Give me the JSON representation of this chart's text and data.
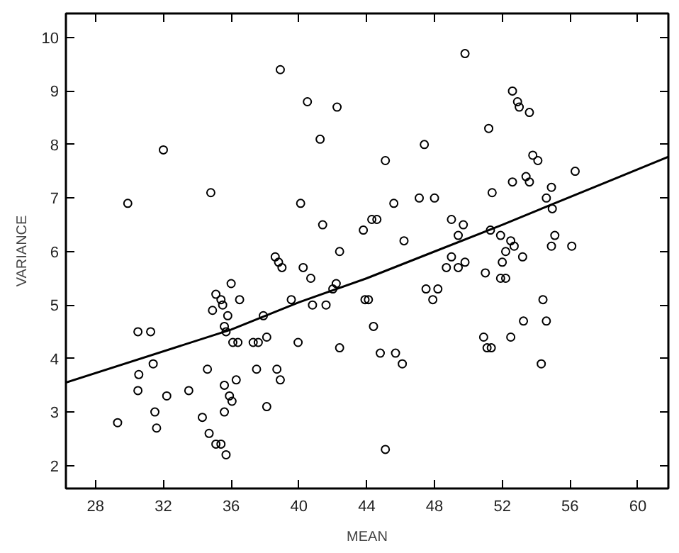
{
  "chart_data": {
    "type": "scatter",
    "xlabel": "MEAN",
    "ylabel": "VARIANCE",
    "xlim": [
      26.25,
      61.8
    ],
    "ylim": [
      1.57,
      10.45
    ],
    "xticks": [
      28,
      32,
      36,
      40,
      44,
      48,
      52,
      56,
      60
    ],
    "yticks": [
      2,
      3,
      4,
      5,
      6,
      7,
      8,
      9,
      10
    ],
    "grid": false,
    "series": [
      {
        "color": "#000000",
        "marker": "circle",
        "x": [
          29.9,
          32.0,
          34.8,
          38.9,
          40.5,
          42.25,
          41.25,
          40.1,
          41.4,
          42.4,
          38.6,
          38.8,
          39.0,
          40.25,
          40.7,
          30.5,
          31.25,
          30.55,
          30.5,
          31.4,
          31.5,
          31.6,
          29.3,
          32.2,
          33.5,
          34.6,
          34.3,
          34.7,
          35.1,
          35.4,
          35.7,
          35.6,
          35.6,
          35.9,
          36.05,
          36.3,
          34.9,
          35.1,
          35.4,
          35.5,
          35.8,
          35.6,
          35.7,
          36.0,
          36.5,
          36.1,
          36.4,
          37.3,
          37.6,
          37.5,
          37.9,
          38.1,
          38.1,
          38.7,
          38.9,
          39.55,
          39.95,
          40.8,
          41.6,
          42.0,
          42.2,
          42.4,
          49.8,
          52.6,
          52.9,
          53.0,
          53.6,
          51.2,
          47.4,
          45.1,
          53.8,
          54.1,
          56.3,
          52.6,
          53.4,
          53.6,
          54.9,
          54.6,
          54.95,
          51.4,
          45.6,
          47.1,
          48.0,
          44.3,
          44.6,
          43.8,
          46.2,
          49.0,
          49.7,
          49.4,
          51.3,
          51.9,
          52.5,
          52.7,
          55.1,
          54.9,
          56.1,
          52.2,
          53.2,
          49.0,
          48.7,
          49.4,
          49.8,
          52.0,
          51.0,
          51.9,
          52.2,
          47.5,
          48.2,
          47.9,
          43.9,
          44.1,
          54.4,
          44.4,
          44.8,
          45.7,
          46.1,
          53.25,
          54.6,
          50.9,
          51.1,
          51.35,
          52.5,
          54.3,
          45.1
        ],
        "values": [
          6.9,
          7.9,
          7.1,
          9.4,
          8.8,
          8.7,
          8.1,
          6.9,
          6.5,
          6.0,
          5.9,
          5.8,
          5.7,
          5.7,
          5.5,
          4.5,
          4.5,
          3.7,
          3.4,
          3.9,
          3.0,
          2.7,
          2.8,
          3.3,
          3.4,
          3.8,
          2.9,
          2.6,
          2.4,
          2.4,
          2.2,
          3.0,
          3.5,
          3.3,
          3.2,
          3.6,
          4.9,
          5.2,
          5.1,
          5.0,
          4.8,
          4.6,
          4.5,
          5.4,
          5.1,
          4.3,
          4.3,
          4.3,
          4.3,
          3.8,
          4.8,
          4.4,
          3.1,
          3.8,
          3.6,
          5.1,
          4.3,
          5.0,
          5.0,
          5.3,
          5.4,
          4.2,
          9.7,
          9.0,
          8.8,
          8.7,
          8.6,
          8.3,
          8.0,
          7.7,
          7.8,
          7.7,
          7.5,
          7.3,
          7.4,
          7.3,
          7.2,
          7.0,
          6.8,
          7.1,
          6.9,
          7.0,
          7.0,
          6.6,
          6.6,
          6.4,
          6.2,
          6.6,
          6.5,
          6.3,
          6.4,
          6.3,
          6.2,
          6.1,
          6.3,
          6.1,
          6.1,
          6.0,
          5.9,
          5.9,
          5.7,
          5.7,
          5.8,
          5.8,
          5.6,
          5.5,
          5.5,
          5.3,
          5.3,
          5.1,
          5.1,
          5.1,
          5.1,
          4.6,
          4.1,
          4.1,
          3.9,
          4.7,
          4.7,
          4.4,
          4.2,
          4.2,
          4.4,
          3.9,
          2.3
        ]
      },
      {
        "type": "line",
        "color": "#000000",
        "x": [
          26.25,
          36,
          40,
          44,
          48,
          52,
          61.8
        ],
        "values": [
          3.55,
          4.54,
          5.05,
          5.5,
          6.0,
          6.5,
          7.77
        ]
      }
    ]
  }
}
